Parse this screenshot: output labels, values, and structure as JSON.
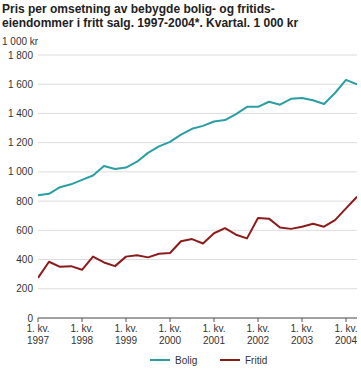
{
  "chart_data": {
    "type": "line",
    "title": "Pris per omsetning av bebygde bolig- og fritids-\neiendommer i fritt salg. 1997-2004*. Kvartal. 1 000 kr",
    "y_label": "1 000 kr",
    "categories": [
      "1. kv. 1997",
      null,
      null,
      null,
      "1. kv. 1998",
      null,
      null,
      null,
      "1. kv. 1999",
      null,
      null,
      null,
      "1. kv. 2000",
      null,
      null,
      null,
      "1. kv. 2001",
      null,
      null,
      null,
      "1. kv. 2002",
      null,
      null,
      null,
      "1. kv. 2003",
      null,
      null,
      null,
      "1. kv. 2004",
      null
    ],
    "series": [
      {
        "name": "Bolig",
        "color": "#2b9ea3",
        "values": [
          840,
          850,
          895,
          915,
          945,
          975,
          1040,
          1020,
          1030,
          1070,
          1130,
          1175,
          1205,
          1255,
          1295,
          1315,
          1345,
          1355,
          1395,
          1445,
          1445,
          1480,
          1460,
          1500,
          1505,
          1490,
          1465,
          1540,
          1630,
          1600
        ]
      },
      {
        "name": "Fritid",
        "color": "#8c1c1c",
        "values": [
          275,
          385,
          350,
          355,
          330,
          420,
          380,
          355,
          420,
          430,
          415,
          440,
          445,
          525,
          540,
          510,
          580,
          615,
          570,
          545,
          685,
          680,
          620,
          610,
          625,
          645,
          625,
          670,
          750,
          830
        ]
      }
    ],
    "ylim": [
      0,
      1800
    ],
    "yticks": [
      0,
      200,
      400,
      600,
      800,
      {
        "value": 1000,
        "label": "1 000"
      },
      {
        "value": 1200,
        "label": "1 200"
      },
      {
        "value": 1400,
        "label": "1 400"
      },
      {
        "value": 1600,
        "label": "1 600"
      },
      {
        "value": 1800,
        "label": "1 800"
      }
    ],
    "grid": true,
    "legend": "bottom"
  }
}
